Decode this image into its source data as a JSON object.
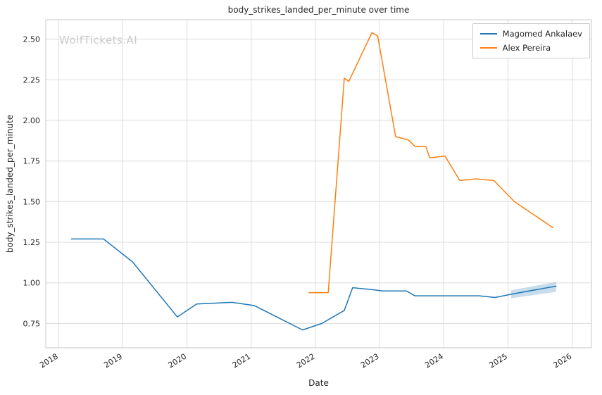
{
  "watermark": {
    "text": "WolfTickets.AI"
  },
  "chart_data": {
    "type": "line",
    "title": "body_strikes_landed_per_minute over time",
    "xlabel": "Date",
    "ylabel": "body_strikes_landed_per_minute",
    "grid": true,
    "legend_position": "upper right",
    "xlim": [
      2017.8,
      2026.3
    ],
    "ylim": [
      0.6,
      2.62
    ],
    "xtick_values": [
      2018,
      2019,
      2020,
      2021,
      2022,
      2023,
      2024,
      2025,
      2026
    ],
    "xtick_labels": [
      "2018",
      "2019",
      "2020",
      "2021",
      "2022",
      "2023",
      "2024",
      "2025",
      "2026"
    ],
    "ytick_values": [
      0.75,
      1.0,
      1.25,
      1.5,
      1.75,
      2.0,
      2.25,
      2.5
    ],
    "ytick_labels": [
      "0.75",
      "1.00",
      "1.25",
      "1.50",
      "1.75",
      "2.00",
      "2.25",
      "2.50"
    ],
    "series": [
      {
        "name": "Magomed Ankalaev",
        "color": "#1f77b4",
        "x": [
          2018.2,
          2018.7,
          2019.15,
          2019.85,
          2020.15,
          2020.7,
          2021.05,
          2021.8,
          2022.1,
          2022.45,
          2022.58,
          2022.85,
          2023.05,
          2023.42,
          2023.55,
          2023.95,
          2024.55,
          2024.8,
          2025.05,
          2025.75
        ],
        "y": [
          1.27,
          1.27,
          1.13,
          0.79,
          0.87,
          0.88,
          0.86,
          0.71,
          0.75,
          0.83,
          0.97,
          0.96,
          0.95,
          0.95,
          0.92,
          0.92,
          0.92,
          0.91,
          0.93,
          0.98
        ]
      },
      {
        "name": "Alex Pereira",
        "color": "#ff7f0e",
        "x": [
          2021.9,
          2022.2,
          2022.45,
          2022.52,
          2022.88,
          2022.97,
          2023.25,
          2023.45,
          2023.55,
          2023.72,
          2023.78,
          2024.02,
          2024.25,
          2024.5,
          2024.78,
          2025.1,
          2025.7
        ],
        "y": [
          0.94,
          0.94,
          2.26,
          2.24,
          2.54,
          2.52,
          1.9,
          1.88,
          1.84,
          1.84,
          1.77,
          1.78,
          1.63,
          1.64,
          1.63,
          1.5,
          1.34
        ]
      }
    ],
    "confidence_band": {
      "series": "Magomed Ankalaev",
      "color": "#1f77b4",
      "opacity": 0.25,
      "x": [
        2025.05,
        2025.75
      ],
      "y_lower": [
        0.905,
        0.945
      ],
      "y_upper": [
        0.955,
        1.005
      ]
    }
  }
}
